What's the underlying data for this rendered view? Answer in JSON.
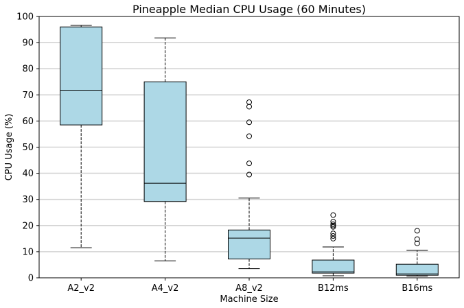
{
  "chart_data": {
    "type": "box",
    "title": "Pineapple Median CPU Usage (60 Minutes)",
    "xlabel": "Machine Size",
    "ylabel": "CPU Usage (%)",
    "ylim": [
      0,
      100
    ],
    "yticks": [
      0,
      10,
      20,
      30,
      40,
      50,
      60,
      70,
      80,
      90,
      100
    ],
    "grid": "horizontal",
    "box_color": "#add8e6",
    "categories": [
      "A2_v2",
      "A4_v2",
      "A8_v2",
      "B12ms",
      "B16ms"
    ],
    "boxes": [
      {
        "category": "A2_v2",
        "whisker_low": 11.5,
        "q1": 58.5,
        "median": 71.8,
        "q3": 96.0,
        "whisker_high": 96.6,
        "outliers": []
      },
      {
        "category": "A4_v2",
        "whisker_low": 6.5,
        "q1": 29.2,
        "median": 36.2,
        "q3": 75.0,
        "whisker_high": 91.8,
        "outliers": []
      },
      {
        "category": "A8_v2",
        "whisker_low": 3.5,
        "q1": 7.2,
        "median": 15.2,
        "q3": 18.3,
        "whisker_high": 30.5,
        "outliers": [
          39.5,
          43.8,
          54.2,
          59.5,
          65.5,
          67.2
        ]
      },
      {
        "category": "B12ms",
        "whisker_low": 0.8,
        "q1": 1.8,
        "median": 2.3,
        "q3": 6.8,
        "whisker_high": 11.8,
        "outliers": [
          15.0,
          16.0,
          17.0,
          19.5,
          20.0,
          20.5,
          21.5,
          24.0
        ]
      },
      {
        "category": "B16ms",
        "whisker_low": 0.7,
        "q1": 1.0,
        "median": 1.5,
        "q3": 5.2,
        "whisker_high": 10.5,
        "outliers": [
          13.2,
          14.8,
          18.0
        ]
      }
    ]
  }
}
